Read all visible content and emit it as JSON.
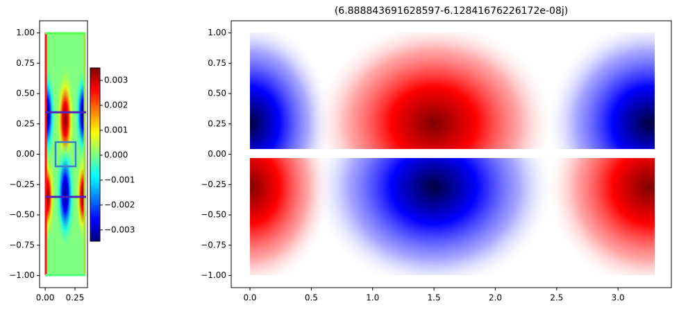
{
  "chart_data": [
    {
      "type": "heatmap",
      "xlim": [
        -0.047,
        0.355
      ],
      "ylim": [
        -1.1,
        1.1
      ],
      "xticks": [
        {
          "value": 0,
          "label": "0.00"
        },
        {
          "value": 0.25,
          "label": "0.25"
        }
      ],
      "yticks": [
        {
          "value": 1,
          "label": "1.00"
        },
        {
          "value": 0.75,
          "label": "0.75"
        },
        {
          "value": 0.5,
          "label": "0.50"
        },
        {
          "value": 0.25,
          "label": "0.25"
        },
        {
          "value": 0,
          "label": "0.00"
        },
        {
          "value": -0.25,
          "label": "−0.25"
        },
        {
          "value": -0.5,
          "label": "−0.50"
        },
        {
          "value": -0.75,
          "label": "−0.75"
        },
        {
          "value": -1,
          "label": "−1.00"
        }
      ],
      "colorbar": {
        "lim": [
          -0.00345,
          0.0035
        ],
        "ticks": [
          0.003,
          0.002,
          0.001,
          {
            "value": 0,
            "label": "0.000"
          },
          {
            "value": -0.001,
            "label": "−0.001"
          },
          {
            "value": -0.002,
            "label": "−0.002"
          },
          {
            "value": -0.003,
            "label": "−0.003"
          }
        ]
      }
    },
    {
      "type": "heatmap",
      "title": "(6.888843691628597-6.12841676226172e-08j)",
      "xlim": [
        -0.153,
        3.435
      ],
      "ylim": [
        -1.1,
        1.1
      ],
      "xticks": [
        {
          "value": 0,
          "label": "0.0"
        },
        {
          "value": 0.5,
          "label": "0.5"
        },
        {
          "value": 1,
          "label": "1.0"
        },
        {
          "value": 1.5,
          "label": "1.5"
        },
        {
          "value": 2,
          "label": "2.0"
        },
        {
          "value": 2.5,
          "label": "2.5"
        },
        {
          "value": 3,
          "label": "3.0"
        }
      ],
      "yticks": [
        {
          "value": 1,
          "label": "1.00"
        },
        {
          "value": 0.75,
          "label": "0.75"
        },
        {
          "value": 0.5,
          "label": "0.50"
        },
        {
          "value": 0.25,
          "label": "0.25"
        },
        {
          "value": 0,
          "label": "0.00"
        },
        {
          "value": -0.25,
          "label": "−0.25"
        },
        {
          "value": -0.5,
          "label": "−0.50"
        },
        {
          "value": -0.75,
          "label": "−0.75"
        },
        {
          "value": -1,
          "label": "−1.00"
        }
      ]
    }
  ]
}
